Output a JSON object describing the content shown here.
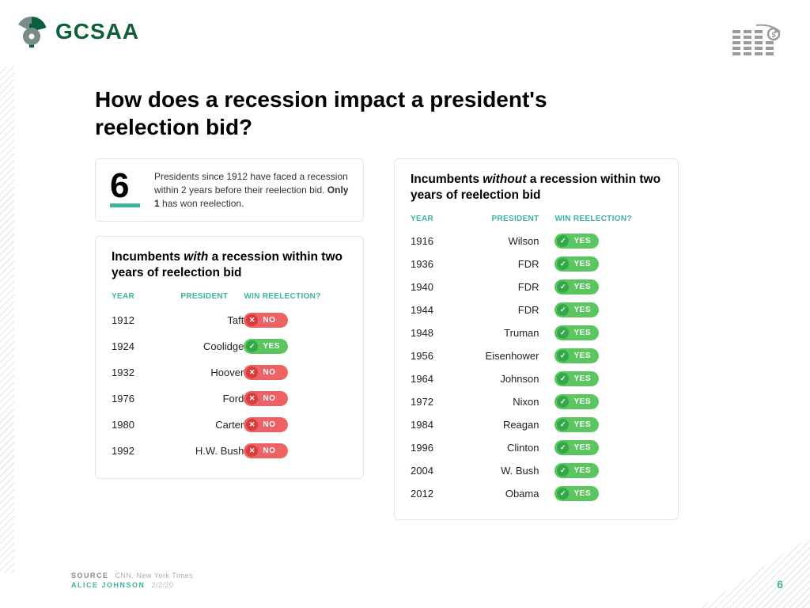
{
  "brand": {
    "name": "GCSAA",
    "color": "#0d5e3a",
    "accent": "#3eb39d",
    "gray": "#7a8b88"
  },
  "title": "How does a recession impact a president's reelection bid?",
  "stat": {
    "number": "6",
    "text_pre": "Presidents since 1912 have faced a recession within 2 years before their reelection bid. ",
    "text_bold": "Only 1",
    "text_post": " has won reelection."
  },
  "headers": {
    "year": "YEAR",
    "president": "PRESIDENT",
    "win": "WIN REELECTION?"
  },
  "badge_colors": {
    "yes_bg": "#5bc55f",
    "yes_circle": "#33a84a",
    "no_bg": "#ef6264",
    "no_circle": "#d63d3f"
  },
  "with_recession": {
    "title_pre": "Incumbents ",
    "title_em": "with",
    "title_post": " a recession within two years of reelection bid",
    "rows": [
      {
        "year": "1912",
        "president": "Taft",
        "win": false
      },
      {
        "year": "1924",
        "president": "Coolidge",
        "win": true
      },
      {
        "year": "1932",
        "president": "Hoover",
        "win": false
      },
      {
        "year": "1976",
        "president": "Ford",
        "win": false
      },
      {
        "year": "1980",
        "president": "Carter",
        "win": false
      },
      {
        "year": "1992",
        "president": "H.W. Bush",
        "win": false
      }
    ]
  },
  "without_recession": {
    "title_pre": "Incumbents ",
    "title_em": "without",
    "title_post": " a recession within two years of reelection bid",
    "rows": [
      {
        "year": "1916",
        "president": "Wilson",
        "win": true
      },
      {
        "year": "1936",
        "president": "FDR",
        "win": true
      },
      {
        "year": "1940",
        "president": "FDR",
        "win": true
      },
      {
        "year": "1944",
        "president": "FDR",
        "win": true
      },
      {
        "year": "1948",
        "president": "Truman",
        "win": true
      },
      {
        "year": "1956",
        "president": "Eisenhower",
        "win": true
      },
      {
        "year": "1964",
        "president": "Johnson",
        "win": true
      },
      {
        "year": "1972",
        "president": "Nixon",
        "win": true
      },
      {
        "year": "1984",
        "president": "Reagan",
        "win": true
      },
      {
        "year": "1996",
        "president": "Clinton",
        "win": true
      },
      {
        "year": "2004",
        "president": "W. Bush",
        "win": true
      },
      {
        "year": "2012",
        "president": "Obama",
        "win": true
      }
    ]
  },
  "labels": {
    "yes": "YES",
    "no": "NO"
  },
  "footer": {
    "source_label": "SOURCE",
    "source_value": "CNN, New York Times",
    "author": "ALICE JOHNSON",
    "date": "2/2/20"
  },
  "page_number": "6"
}
